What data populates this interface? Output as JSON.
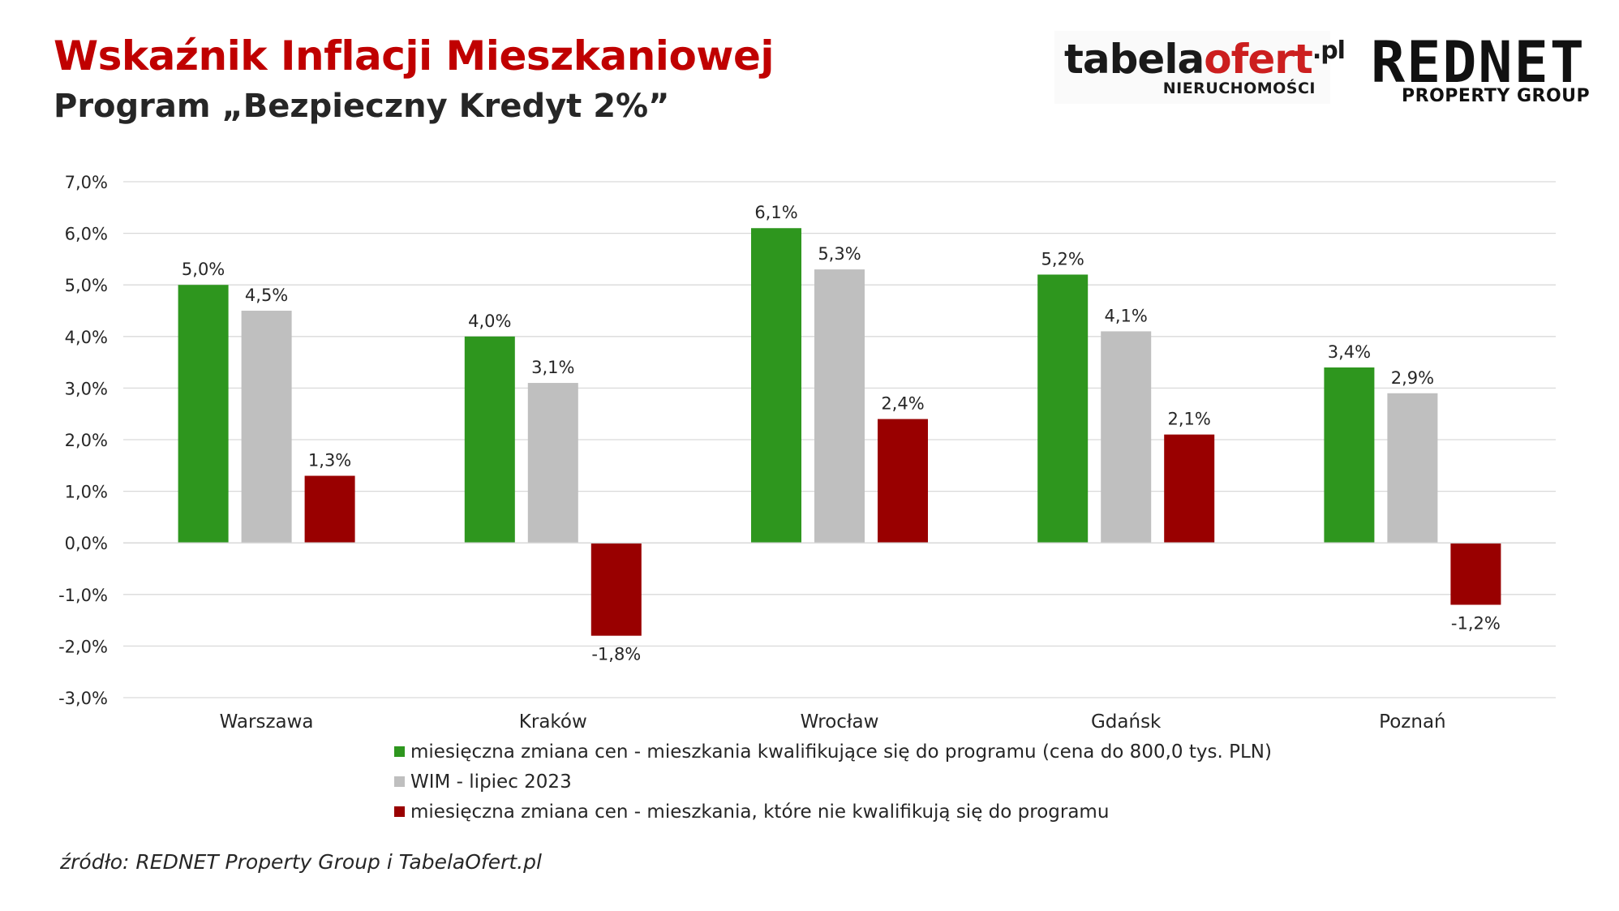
{
  "header": {
    "title": "Wskaźnik Inflacji Mieszkaniowej",
    "subtitle": "Program „Bezpieczny Kredyt 2%”"
  },
  "logos": {
    "tabela": {
      "word_a": "tabela",
      "word_b": "ofert",
      "tld": ".pl",
      "sub": "NIERUCHOMOŚCI"
    },
    "rednet": {
      "word": "REDNET",
      "sub": "PROPERTY GROUP"
    }
  },
  "source": "źródło: REDNET Property Group i TabelaOfert.pl",
  "colors": {
    "green": "#2e961e",
    "gray": "#bfbfbf",
    "red": "#990000",
    "title": "#c00000",
    "grid": "#d9d9d9",
    "text": "#262626"
  },
  "chart_data": {
    "type": "bar",
    "categories": [
      "Warszawa",
      "Kraków",
      "Wrocław",
      "Gdańsk",
      "Poznań"
    ],
    "series": [
      {
        "name": "miesięczna zmiana cen - mieszkania kwalifikujące się do programu (cena do 800,0 tys. PLN)",
        "color": "#2e961e",
        "values": [
          5.0,
          4.0,
          6.1,
          5.2,
          3.4
        ],
        "labels": [
          "5,0%",
          "4,0%",
          "6,1%",
          "5,2%",
          "3,4%"
        ]
      },
      {
        "name": "WIM - lipiec 2023",
        "color": "#bfbfbf",
        "values": [
          4.5,
          3.1,
          5.3,
          4.1,
          2.9
        ],
        "labels": [
          "4,5%",
          "3,1%",
          "5,3%",
          "4,1%",
          "2,9%"
        ]
      },
      {
        "name": "miesięczna zmiana cen - mieszkania, które nie kwalifikują się do programu",
        "color": "#990000",
        "values": [
          1.3,
          -1.8,
          2.4,
          2.1,
          -1.2
        ],
        "labels": [
          "1,3%",
          "-1,8%",
          "2,4%",
          "2,1%",
          "-1,2%"
        ]
      }
    ],
    "ylim": [
      -3.0,
      7.0
    ],
    "yticks": [
      7.0,
      6.0,
      5.0,
      4.0,
      3.0,
      2.0,
      1.0,
      0.0,
      -1.0,
      -2.0,
      -3.0
    ],
    "ytick_labels": [
      "7,0%",
      "6,0%",
      "5,0%",
      "4,0%",
      "3,0%",
      "2,0%",
      "1,0%",
      "0,0%",
      "-1,0%",
      "-2,0%",
      "-3,0%"
    ],
    "grid": true,
    "legend_position": "bottom"
  }
}
